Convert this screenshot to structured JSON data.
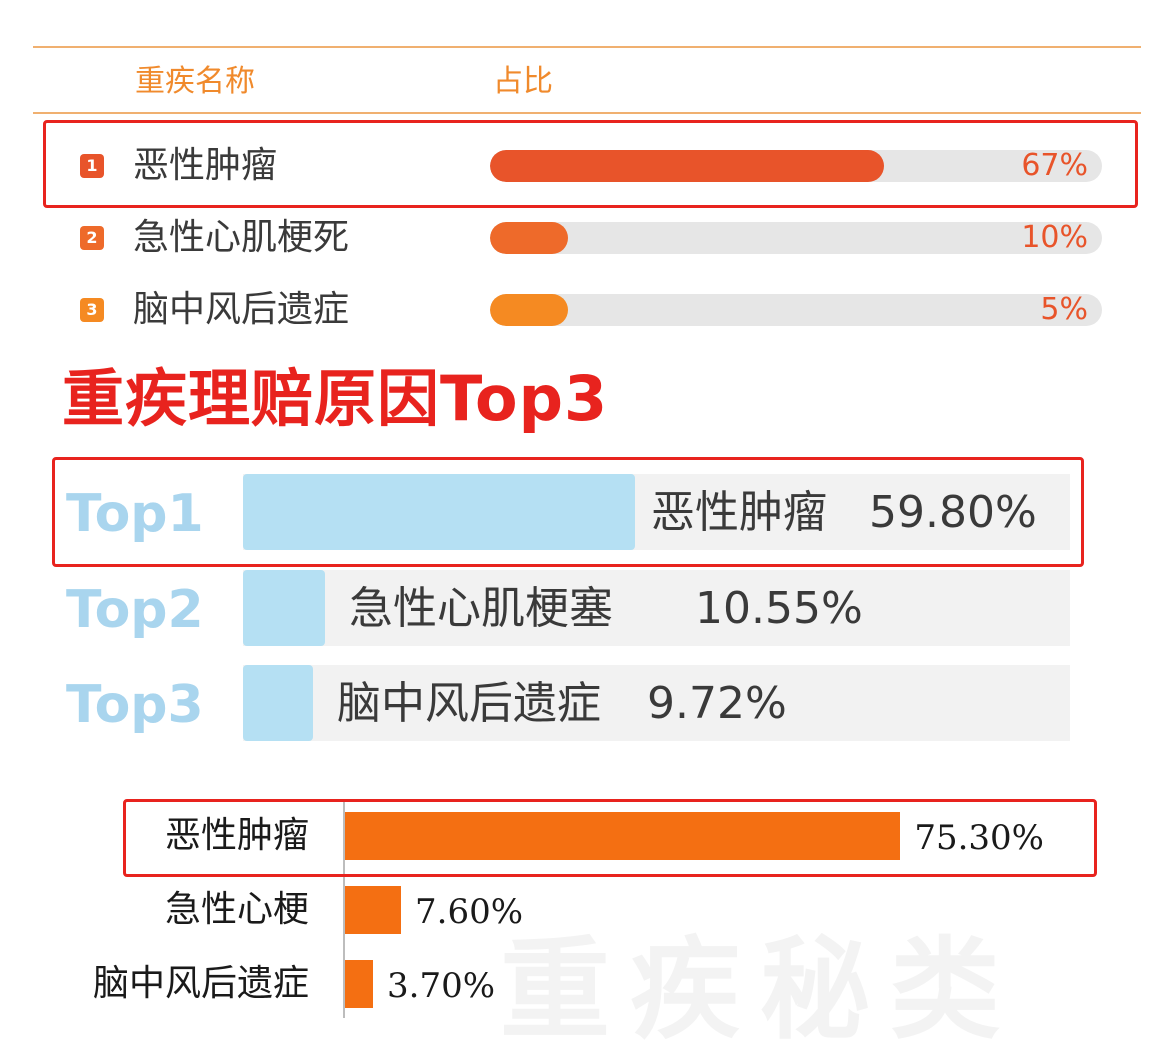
{
  "chart_data": [
    {
      "type": "bar",
      "orientation": "horizontal",
      "header": {
        "name_col": "重疾名称",
        "ratio_col": "占比"
      },
      "ranks": [
        "1",
        "2",
        "3"
      ],
      "categories": [
        "恶性肿瘤",
        "急性心肌梗死",
        "脑中风后遗症"
      ],
      "values": [
        67,
        10,
        5
      ],
      "labels": [
        "67%",
        "10%",
        "5%"
      ],
      "xlim": [
        0,
        100
      ],
      "colors": [
        "#e8542a",
        "#ee6a2a",
        "#f58a22"
      ],
      "highlight_index": 0
    },
    {
      "type": "bar",
      "orientation": "horizontal",
      "title": "重疾理赔原因Top3",
      "rank_labels": [
        "Top1",
        "Top2",
        "Top3"
      ],
      "categories": [
        "恶性肿瘤",
        "急性心肌梗塞",
        "脑中风后遗症"
      ],
      "values": [
        59.8,
        10.55,
        9.72
      ],
      "labels": [
        "59.80%",
        "10.55%",
        "9.72%"
      ],
      "xlim": [
        0,
        100
      ],
      "colors": [
        "#b5e0f3"
      ],
      "highlight_index": 0
    },
    {
      "type": "bar",
      "orientation": "horizontal",
      "categories": [
        "恶性肿瘤",
        "急性心梗",
        "脑中风后遗症"
      ],
      "values": [
        75.3,
        7.6,
        3.7
      ],
      "labels": [
        "75.30%",
        "7.60%",
        "3.70%"
      ],
      "xlim": [
        0,
        80
      ],
      "colors": [
        "#f46f12"
      ],
      "highlight_index": 0
    }
  ],
  "watermark": "重疾秘类"
}
